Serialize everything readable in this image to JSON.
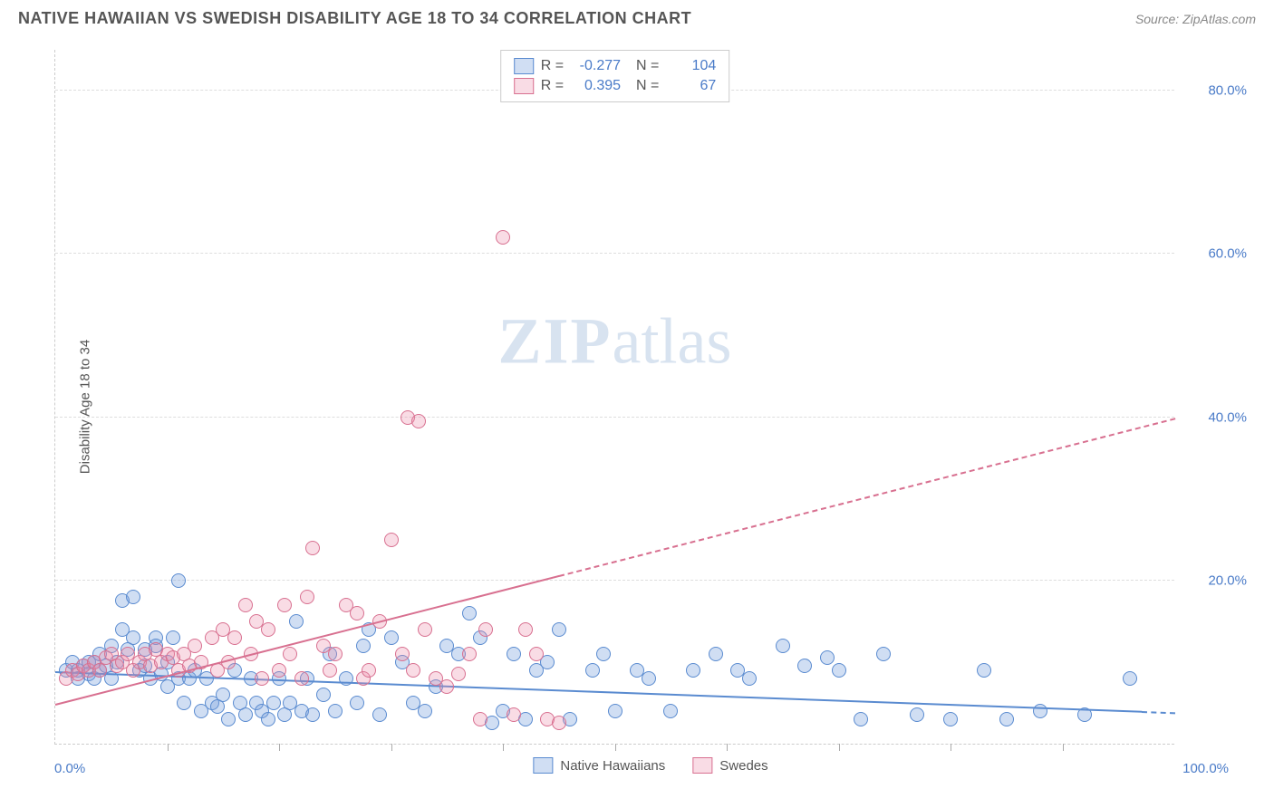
{
  "header": {
    "title": "NATIVE HAWAIIAN VS SWEDISH DISABILITY AGE 18 TO 34 CORRELATION CHART",
    "source": "Source: ZipAtlas.com"
  },
  "chart": {
    "ylabel": "Disability Age 18 to 34",
    "xlim": [
      0,
      100
    ],
    "ylim": [
      0,
      85
    ],
    "yticks": [
      20,
      40,
      60,
      80
    ],
    "ytick_labels": [
      "20.0%",
      "40.0%",
      "60.0%",
      "80.0%"
    ],
    "xtick_minor": [
      10,
      20,
      30,
      40,
      50,
      60,
      70,
      80,
      90
    ],
    "xtick_labels": [
      {
        "pos": 0,
        "label": "0.0%"
      },
      {
        "pos": 100,
        "label": "100.0%"
      }
    ],
    "background_color": "#ffffff",
    "grid_color": "#dddddd",
    "axis_color": "#cccccc",
    "marker_radius": 8,
    "series": {
      "hawaiian": {
        "label": "Native Hawaiians",
        "fill": "rgba(120,160,220,0.35)",
        "stroke": "#5a8bd0",
        "R": "-0.277",
        "N": "104",
        "reg_start": {
          "x": 0,
          "y": 9
        },
        "reg_end": {
          "x": 100,
          "y": 4
        },
        "reg_solid_to_x": 97,
        "points": [
          [
            1,
            9
          ],
          [
            1.5,
            10
          ],
          [
            2,
            9
          ],
          [
            2,
            8
          ],
          [
            2.5,
            9.5
          ],
          [
            3,
            10
          ],
          [
            3,
            8.5
          ],
          [
            3.5,
            10
          ],
          [
            3.5,
            8
          ],
          [
            4,
            11
          ],
          [
            4,
            9
          ],
          [
            4.5,
            9.5
          ],
          [
            5,
            8
          ],
          [
            5,
            12
          ],
          [
            5.5,
            10
          ],
          [
            6,
            17.5
          ],
          [
            6,
            14
          ],
          [
            6.5,
            11.5
          ],
          [
            7,
            18
          ],
          [
            7,
            13
          ],
          [
            7.5,
            9
          ],
          [
            8,
            9.5
          ],
          [
            8,
            11.5
          ],
          [
            8.5,
            8
          ],
          [
            9,
            13
          ],
          [
            9,
            12
          ],
          [
            9.5,
            8.5
          ],
          [
            10,
            7
          ],
          [
            10,
            10
          ],
          [
            10.5,
            13
          ],
          [
            11,
            20
          ],
          [
            11,
            8
          ],
          [
            11.5,
            5
          ],
          [
            12,
            8
          ],
          [
            12.5,
            9
          ],
          [
            13,
            4
          ],
          [
            13.5,
            8
          ],
          [
            14,
            5
          ],
          [
            14.5,
            4.5
          ],
          [
            15,
            6
          ],
          [
            15.5,
            3
          ],
          [
            16,
            9
          ],
          [
            16.5,
            5
          ],
          [
            17,
            3.5
          ],
          [
            17.5,
            8
          ],
          [
            18,
            5
          ],
          [
            18.5,
            4
          ],
          [
            19,
            3
          ],
          [
            19.5,
            5
          ],
          [
            20,
            8
          ],
          [
            20.5,
            3.5
          ],
          [
            21,
            5
          ],
          [
            21.5,
            15
          ],
          [
            22,
            4
          ],
          [
            22.5,
            8
          ],
          [
            23,
            3.5
          ],
          [
            24,
            6
          ],
          [
            24.5,
            11
          ],
          [
            25,
            4
          ],
          [
            26,
            8
          ],
          [
            27,
            5
          ],
          [
            27.5,
            12
          ],
          [
            28,
            14
          ],
          [
            29,
            3.5
          ],
          [
            30,
            13
          ],
          [
            31,
            10
          ],
          [
            32,
            5
          ],
          [
            33,
            4
          ],
          [
            34,
            7
          ],
          [
            35,
            12
          ],
          [
            36,
            11
          ],
          [
            37,
            16
          ],
          [
            38,
            13
          ],
          [
            39,
            2.5
          ],
          [
            40,
            4
          ],
          [
            41,
            11
          ],
          [
            42,
            3
          ],
          [
            43,
            9
          ],
          [
            44,
            10
          ],
          [
            45,
            14
          ],
          [
            46,
            3
          ],
          [
            48,
            9
          ],
          [
            49,
            11
          ],
          [
            50,
            4
          ],
          [
            52,
            9
          ],
          [
            53,
            8
          ],
          [
            55,
            4
          ],
          [
            57,
            9
          ],
          [
            59,
            11
          ],
          [
            61,
            9
          ],
          [
            62,
            8
          ],
          [
            65,
            12
          ],
          [
            67,
            9.5
          ],
          [
            69,
            10.5
          ],
          [
            70,
            9
          ],
          [
            72,
            3
          ],
          [
            74,
            11
          ],
          [
            77,
            3.5
          ],
          [
            80,
            3
          ],
          [
            83,
            9
          ],
          [
            85,
            3
          ],
          [
            88,
            4
          ],
          [
            92,
            3.5
          ],
          [
            96,
            8
          ]
        ]
      },
      "swedish": {
        "label": "Swedes",
        "fill": "rgba(235,140,170,0.3)",
        "stroke": "#d87090",
        "R": "0.395",
        "N": "67",
        "reg_start": {
          "x": 0,
          "y": 5
        },
        "reg_end": {
          "x": 100,
          "y": 40
        },
        "reg_solid_to_x": 45,
        "points": [
          [
            1,
            8
          ],
          [
            1.5,
            9
          ],
          [
            2,
            8.5
          ],
          [
            2.5,
            9.5
          ],
          [
            3,
            9
          ],
          [
            3.5,
            10
          ],
          [
            4,
            9
          ],
          [
            4.5,
            10.5
          ],
          [
            5,
            11
          ],
          [
            5.5,
            9.5
          ],
          [
            6,
            10
          ],
          [
            6.5,
            11
          ],
          [
            7,
            9
          ],
          [
            7.5,
            10
          ],
          [
            8,
            11
          ],
          [
            8.5,
            9.5
          ],
          [
            9,
            11.5
          ],
          [
            9.5,
            10
          ],
          [
            10,
            11
          ],
          [
            10.5,
            10.5
          ],
          [
            11,
            9
          ],
          [
            11.5,
            11
          ],
          [
            12,
            9.5
          ],
          [
            12.5,
            12
          ],
          [
            13,
            10
          ],
          [
            14,
            13
          ],
          [
            14.5,
            9
          ],
          [
            15,
            14
          ],
          [
            15.5,
            10
          ],
          [
            16,
            13
          ],
          [
            17,
            17
          ],
          [
            17.5,
            11
          ],
          [
            18,
            15
          ],
          [
            18.5,
            8
          ],
          [
            19,
            14
          ],
          [
            20,
            9
          ],
          [
            20.5,
            17
          ],
          [
            21,
            11
          ],
          [
            22,
            8
          ],
          [
            22.5,
            18
          ],
          [
            23,
            24
          ],
          [
            24,
            12
          ],
          [
            24.5,
            9
          ],
          [
            25,
            11
          ],
          [
            26,
            17
          ],
          [
            27,
            16
          ],
          [
            27.5,
            8
          ],
          [
            28,
            9
          ],
          [
            29,
            15
          ],
          [
            30,
            25
          ],
          [
            31,
            11
          ],
          [
            31.5,
            40
          ],
          [
            32,
            9
          ],
          [
            32.5,
            39.5
          ],
          [
            33,
            14
          ],
          [
            34,
            8
          ],
          [
            35,
            7
          ],
          [
            36,
            8.5
          ],
          [
            37,
            11
          ],
          [
            38,
            3
          ],
          [
            38.5,
            14
          ],
          [
            40,
            62
          ],
          [
            41,
            3.5
          ],
          [
            42,
            14
          ],
          [
            43,
            11
          ],
          [
            44,
            3
          ],
          [
            45,
            2.5
          ]
        ]
      }
    },
    "legend_stats": [
      {
        "swatch_fill": "rgba(120,160,220,0.35)",
        "swatch_stroke": "#5a8bd0",
        "R": "-0.277",
        "N": "104"
      },
      {
        "swatch_fill": "rgba(235,140,170,0.3)",
        "swatch_stroke": "#d87090",
        "R": "0.395",
        "N": "67"
      }
    ],
    "watermark": {
      "part1": "ZIP",
      "part2": "atlas"
    }
  }
}
